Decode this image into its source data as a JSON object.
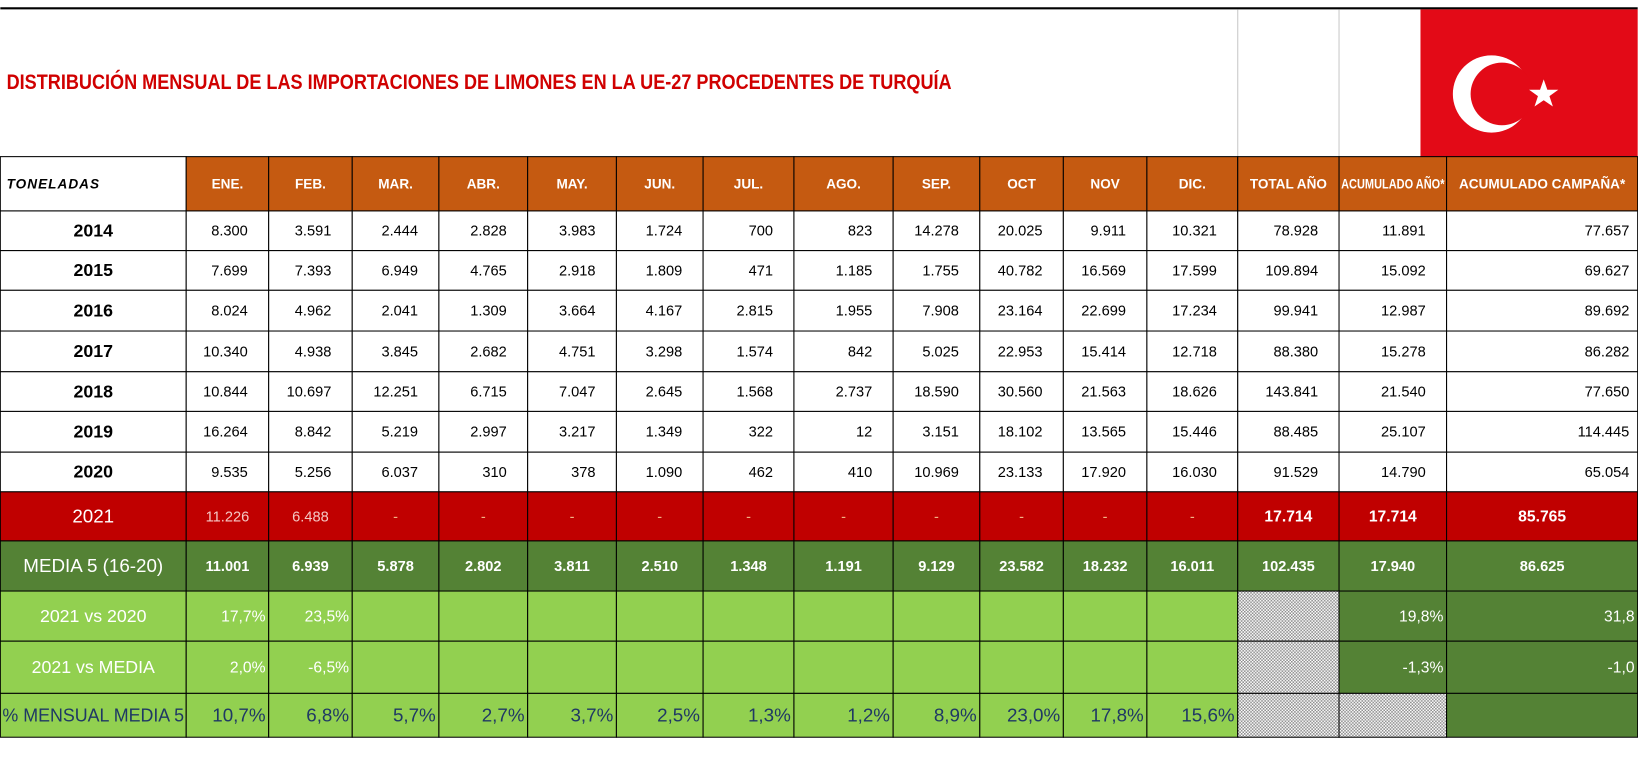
{
  "title": "DISTRIBUCIÓN MENSUAL DE LAS IMPORTACIONES DE LIMONES EN LA UE-27 PROCEDENTES DE TURQUÍA",
  "table": {
    "unit_label": "TONELADAS",
    "columns": [
      "ENE.",
      "FEB.",
      "MAR.",
      "ABR.",
      "MAY.",
      "JUN.",
      "JUL.",
      "AGO.",
      "SEP.",
      "OCT",
      "NOV",
      "DIC.",
      "TOTAL AÑO",
      "ACUMULADO AÑO*",
      "ACUMULADO CAMPAÑA*"
    ],
    "rows": [
      {
        "label": "2014",
        "cells": [
          "8.300",
          "3.591",
          "2.444",
          "2.828",
          "3.983",
          "1.724",
          "700",
          "823",
          "14.278",
          "20.025",
          "9.911",
          "10.321",
          "78.928",
          "11.891",
          "77.657"
        ]
      },
      {
        "label": "2015",
        "cells": [
          "7.699",
          "7.393",
          "6.949",
          "4.765",
          "2.918",
          "1.809",
          "471",
          "1.185",
          "1.755",
          "40.782",
          "16.569",
          "17.599",
          "109.894",
          "15.092",
          "69.627"
        ]
      },
      {
        "label": "2016",
        "cells": [
          "8.024",
          "4.962",
          "2.041",
          "1.309",
          "3.664",
          "4.167",
          "2.815",
          "1.955",
          "7.908",
          "23.164",
          "22.699",
          "17.234",
          "99.941",
          "12.987",
          "89.692"
        ]
      },
      {
        "label": "2017",
        "cells": [
          "10.340",
          "4.938",
          "3.845",
          "2.682",
          "4.751",
          "3.298",
          "1.574",
          "842",
          "5.025",
          "22.953",
          "15.414",
          "12.718",
          "88.380",
          "15.278",
          "86.282"
        ]
      },
      {
        "label": "2018",
        "cells": [
          "10.844",
          "10.697",
          "12.251",
          "6.715",
          "7.047",
          "2.645",
          "1.568",
          "2.737",
          "18.590",
          "30.560",
          "21.563",
          "18.626",
          "143.841",
          "21.540",
          "77.650"
        ]
      },
      {
        "label": "2019",
        "cells": [
          "16.264",
          "8.842",
          "5.219",
          "2.997",
          "3.217",
          "1.349",
          "322",
          "12",
          "3.151",
          "18.102",
          "13.565",
          "15.446",
          "88.485",
          "25.107",
          "114.445"
        ]
      },
      {
        "label": "2020",
        "cells": [
          "9.535",
          "5.256",
          "6.037",
          "310",
          "378",
          "1.090",
          "462",
          "410",
          "10.969",
          "23.133",
          "17.920",
          "16.030",
          "91.529",
          "14.790",
          "65.054"
        ]
      },
      {
        "label": "2021",
        "cells": [
          "11.226",
          "6.488",
          "-",
          "-",
          "-",
          "-",
          "-",
          "-",
          "-",
          "-",
          "-",
          "-",
          "17.714",
          "17.714",
          "85.765"
        ]
      },
      {
        "label": "MEDIA 5 (16-20)",
        "cells": [
          "11.001",
          "6.939",
          "5.878",
          "2.802",
          "3.811",
          "2.510",
          "1.348",
          "1.191",
          "9.129",
          "23.582",
          "18.232",
          "16.011",
          "102.435",
          "17.940",
          "86.625"
        ]
      },
      {
        "label": "2021 vs 2020",
        "cells": [
          "17,7%",
          "23,5%",
          null,
          null,
          null,
          null,
          null,
          null,
          null,
          null,
          null,
          null,
          null,
          "19,8%",
          "31,8"
        ]
      },
      {
        "label": "2021 vs MEDIA",
        "cells": [
          "2,0%",
          "-6,5%",
          null,
          null,
          null,
          null,
          null,
          null,
          null,
          null,
          null,
          null,
          null,
          "-1,3%",
          "-1,0"
        ]
      },
      {
        "label": "% MENSUAL MEDIA 5",
        "cells": [
          "10,7%",
          "6,8%",
          "5,7%",
          "2,7%",
          "3,7%",
          "2,5%",
          "1,3%",
          "1,2%",
          "8,9%",
          "23,0%",
          "17,8%",
          "15,6%",
          null,
          null,
          null
        ]
      }
    ]
  }
}
